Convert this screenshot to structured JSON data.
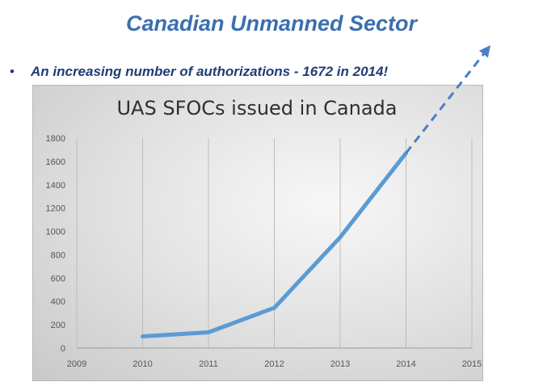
{
  "slide": {
    "title": "Canadian Unmanned Sector",
    "bullet_marker": "•",
    "bullet_text": "An increasing number of authorizations - 1672 in 2014!"
  },
  "colors": {
    "title": "#3a6fb0",
    "bullet": "#1f3e75",
    "line": "#5b9bd5",
    "arrow": "#4a7fc4"
  },
  "chart_data": {
    "type": "line",
    "title": "UAS SFOCs issued in Canada",
    "xlabel": "",
    "ylabel": "",
    "x_ticks": [
      2009,
      2010,
      2011,
      2012,
      2013,
      2014,
      2015
    ],
    "y_ticks": [
      0,
      200,
      400,
      600,
      800,
      1000,
      1200,
      1400,
      1600,
      1800
    ],
    "xlim": [
      2009,
      2015
    ],
    "ylim": [
      0,
      1800
    ],
    "grid": "vertical",
    "series": [
      {
        "name": "SFOCs issued",
        "x": [
          2010,
          2011,
          2012,
          2013,
          2014
        ],
        "values": [
          100,
          135,
          345,
          950,
          1672
        ]
      }
    ],
    "annotation": "dashed upward arrow extending trend beyond 2014"
  }
}
